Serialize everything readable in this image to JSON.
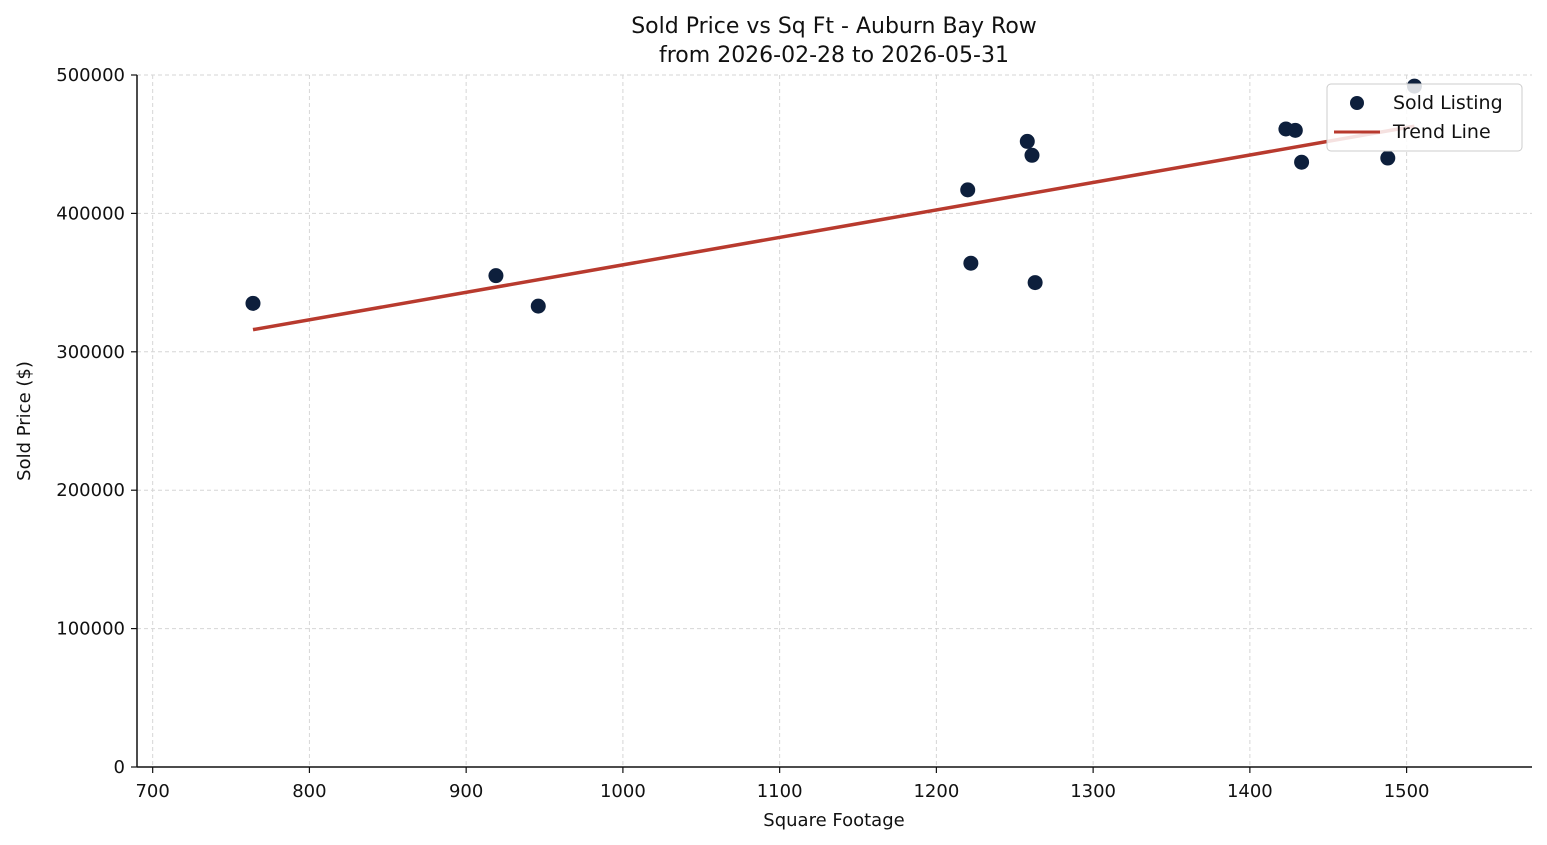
{
  "chart_data": {
    "type": "scatter",
    "title_line1": "Sold Price vs Sq Ft - Auburn Bay Row",
    "title_line2": "from 2026-02-28 to 2026-05-31",
    "xlabel": "Square Footage",
    "ylabel": "Sold Price ($)",
    "xlim": [
      690,
      1580
    ],
    "ylim": [
      0,
      500000
    ],
    "xticks": [
      700,
      800,
      900,
      1000,
      1100,
      1200,
      1300,
      1400,
      1500
    ],
    "yticks": [
      0,
      100000,
      200000,
      300000,
      400000,
      500000
    ],
    "grid": true,
    "legend_position": "top-right",
    "series": [
      {
        "name": "Sold Listing",
        "kind": "scatter",
        "color": "#0d1f3c",
        "points": [
          {
            "x": 764,
            "y": 335000
          },
          {
            "x": 919,
            "y": 355000
          },
          {
            "x": 946,
            "y": 333000
          },
          {
            "x": 1220,
            "y": 417000
          },
          {
            "x": 1222,
            "y": 364000
          },
          {
            "x": 1258,
            "y": 452000
          },
          {
            "x": 1261,
            "y": 442000
          },
          {
            "x": 1263,
            "y": 350000
          },
          {
            "x": 1423,
            "y": 461000
          },
          {
            "x": 1429,
            "y": 460000
          },
          {
            "x": 1433,
            "y": 437000
          },
          {
            "x": 1488,
            "y": 440000
          },
          {
            "x": 1505,
            "y": 492000
          }
        ]
      },
      {
        "name": "Trend Line",
        "kind": "line",
        "color": "#b83a2e",
        "points": [
          {
            "x": 764,
            "y": 316000
          },
          {
            "x": 1505,
            "y": 463000
          }
        ]
      }
    ]
  }
}
